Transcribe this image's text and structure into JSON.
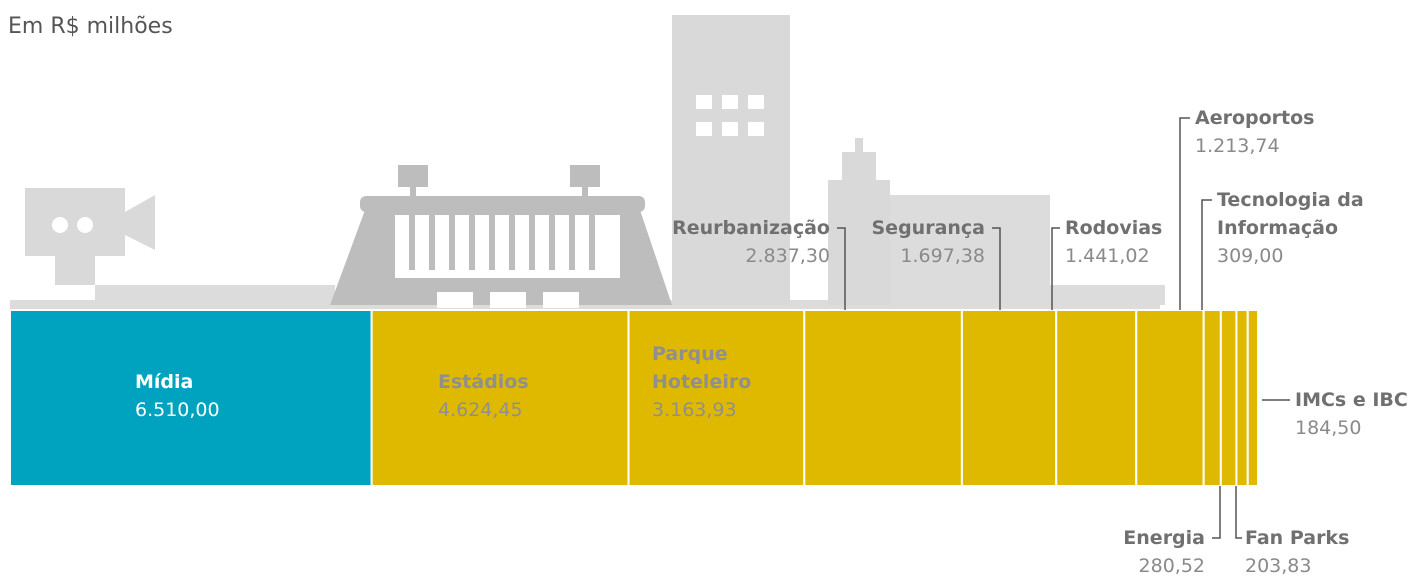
{
  "chart_data": {
    "type": "proportional-bar",
    "subtitle": "Em R$ milhões",
    "categories": [
      "Mídia",
      "Estádios",
      "Parque Hoteleiro",
      "Reurbanização",
      "Segurança",
      "Rodovias",
      "Aeroportos",
      "Tecnologia da Informação",
      "Energia",
      "Fan Parks",
      "IMCs e IBC"
    ],
    "values": [
      6510.0,
      4624.45,
      3163.93,
      2837.3,
      1697.38,
      1441.02,
      1213.74,
      309.0,
      280.52,
      203.83,
      184.5
    ],
    "value_labels": [
      "6.510,00",
      "4.624,45",
      "3.163,93",
      "2.837,30",
      "1.697,38",
      "1.441,02",
      "1.213,74",
      "309,00",
      "280,52",
      "203,83",
      "184,50"
    ],
    "colors": [
      "#00a3bf",
      "#dfb900",
      "#dfb900",
      "#dfb900",
      "#dfb900",
      "#dfb900",
      "#dfb900",
      "#dfb900",
      "#dfb900",
      "#dfb900",
      "#dfb900"
    ]
  }
}
